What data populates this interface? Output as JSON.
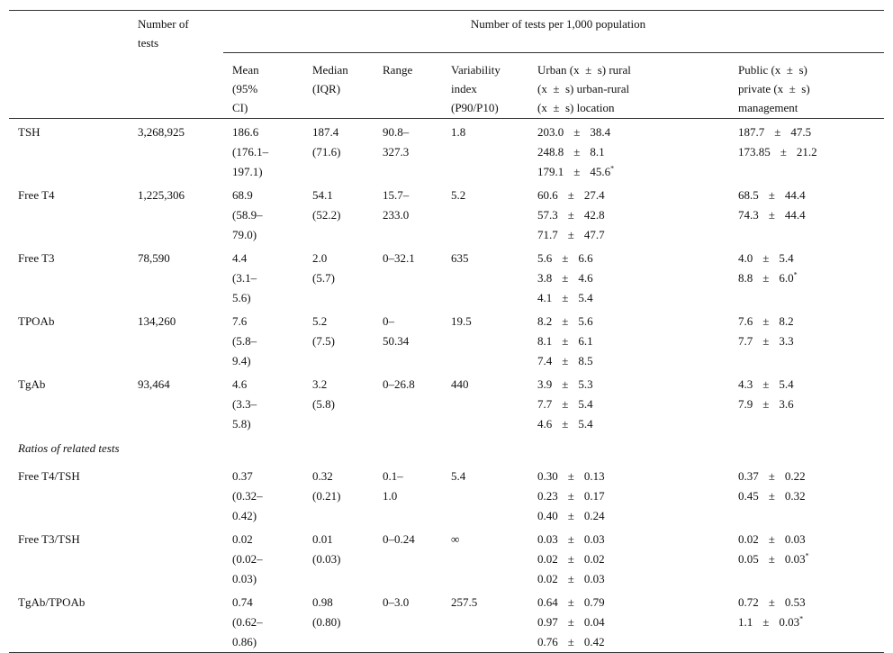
{
  "header": {
    "tests": "Number of tests",
    "per_population": "Number of tests per 1,000 population",
    "mean": "Mean (95% CI)",
    "median": "Median (IQR)",
    "range": "Range",
    "variability": "Variability index (P90/P10)",
    "urban": [
      "Urban (x  ±  s) rural",
      "(x  ±  s) urban-rural",
      "(x  ±  s) location"
    ],
    "public": [
      "Public (x  ±  s)",
      "private (x  ±  s)",
      "management"
    ]
  },
  "pm": "±",
  "rows": [
    {
      "label": "TSH",
      "tests": "3,268,925",
      "mean": "186.6",
      "ci": "(176.1–197.1)",
      "median": "187.4",
      "iqr": "(71.6)",
      "range": "90.8–327.3",
      "variability": "1.8",
      "urban": [
        {
          "mean": "203.0",
          "sd": "38.4"
        },
        {
          "mean": "248.8",
          "sd": "8.1"
        },
        {
          "mean": "179.1",
          "sd": "45.6",
          "note": "*"
        }
      ],
      "public": [
        {
          "mean": "187.7",
          "sd": "47.5"
        },
        {
          "mean": "173.85",
          "sd": "21.2"
        }
      ]
    },
    {
      "label": "Free T4",
      "tests": "1,225,306",
      "mean": "68.9",
      "ci": "(58.9–79.0)",
      "median": "54.1",
      "iqr": "(52.2)",
      "range": "15.7–233.0",
      "variability": "5.2",
      "urban": [
        {
          "mean": "60.6",
          "sd": "27.4"
        },
        {
          "mean": "57.3",
          "sd": "42.8"
        },
        {
          "mean": "71.7",
          "sd": "47.7"
        }
      ],
      "public": [
        {
          "mean": "68.5",
          "sd": "44.4"
        },
        {
          "mean": "74.3",
          "sd": "44.4"
        }
      ]
    },
    {
      "label": "Free T3",
      "tests": "78,590",
      "mean": "4.4",
      "ci": "(3.1–5.6)",
      "median": "2.0",
      "iqr": "(5.7)",
      "range": "0–32.1",
      "variability": "635",
      "urban": [
        {
          "mean": "5.6",
          "sd": "6.6"
        },
        {
          "mean": "3.8",
          "sd": "4.6"
        },
        {
          "mean": "4.1",
          "sd": "5.4"
        }
      ],
      "public": [
        {
          "mean": "4.0",
          "sd": "5.4"
        },
        {
          "mean": "8.8",
          "sd": "6.0",
          "note": "*"
        }
      ]
    },
    {
      "label": "TPOAb",
      "tests": "134,260",
      "mean": "7.6",
      "ci": "(5.8–9.4)",
      "median": "5.2",
      "iqr": "(7.5)",
      "range": "0–50.34",
      "variability": "19.5",
      "urban": [
        {
          "mean": "8.2",
          "sd": "5.6"
        },
        {
          "mean": "8.1",
          "sd": "6.1"
        },
        {
          "mean": "7.4",
          "sd": "8.5"
        }
      ],
      "public": [
        {
          "mean": "7.6",
          "sd": "8.2"
        },
        {
          "mean": "7.7",
          "sd": "3.3"
        }
      ]
    },
    {
      "label": "TgAb",
      "tests": "93,464",
      "mean": "4.6",
      "ci": "(3.3–5.8)",
      "median": "3.2",
      "iqr": "(5.8)",
      "range": "0–26.8",
      "variability": "440",
      "urban": [
        {
          "mean": "3.9",
          "sd": "5.3"
        },
        {
          "mean": "7.7",
          "sd": "5.4"
        },
        {
          "mean": "4.6",
          "sd": "5.4"
        }
      ],
      "public": [
        {
          "mean": "4.3",
          "sd": "5.4"
        },
        {
          "mean": "7.9",
          "sd": "3.6"
        }
      ]
    },
    {
      "section": "Ratios of related tests"
    },
    {
      "label": "Free T4/TSH",
      "mean": "0.37",
      "ci": "(0.32–0.42)",
      "median": "0.32",
      "iqr": "(0.21)",
      "range": "0.1–1.0",
      "variability": "5.4",
      "urban": [
        {
          "mean": "0.30",
          "sd": "0.13"
        },
        {
          "mean": "0.23",
          "sd": "0.17"
        },
        {
          "mean": "0.40",
          "sd": "0.24"
        }
      ],
      "public": [
        {
          "mean": "0.37",
          "sd": "0.22"
        },
        {
          "mean": "0.45",
          "sd": "0.32"
        }
      ]
    },
    {
      "label": "Free T3/TSH",
      "mean": "0.02",
      "ci": "(0.02–0.03)",
      "median": "0.01",
      "iqr": "(0.03)",
      "range": "0–0.24",
      "variability": "∞",
      "urban": [
        {
          "mean": "0.03",
          "sd": "0.03"
        },
        {
          "mean": "0.02",
          "sd": "0.02"
        },
        {
          "mean": "0.02",
          "sd": "0.03"
        }
      ],
      "public": [
        {
          "mean": "0.02",
          "sd": "0.03"
        },
        {
          "mean": "0.05",
          "sd": "0.03",
          "note": "*"
        }
      ]
    },
    {
      "label": "TgAb/TPOAb",
      "mean": "0.74",
      "ci": "(0.62–0.86)",
      "median": "0.98",
      "iqr": "(0.80)",
      "range": "0–3.0",
      "variability": "257.5",
      "urban": [
        {
          "mean": "0.64",
          "sd": "0.79"
        },
        {
          "mean": "0.97",
          "sd": "0.04"
        },
        {
          "mean": "0.76",
          "sd": "0.42"
        }
      ],
      "public": [
        {
          "mean": "0.72",
          "sd": "0.53"
        },
        {
          "mean": "1.1",
          "sd": "0.03",
          "note": "*"
        }
      ]
    }
  ]
}
